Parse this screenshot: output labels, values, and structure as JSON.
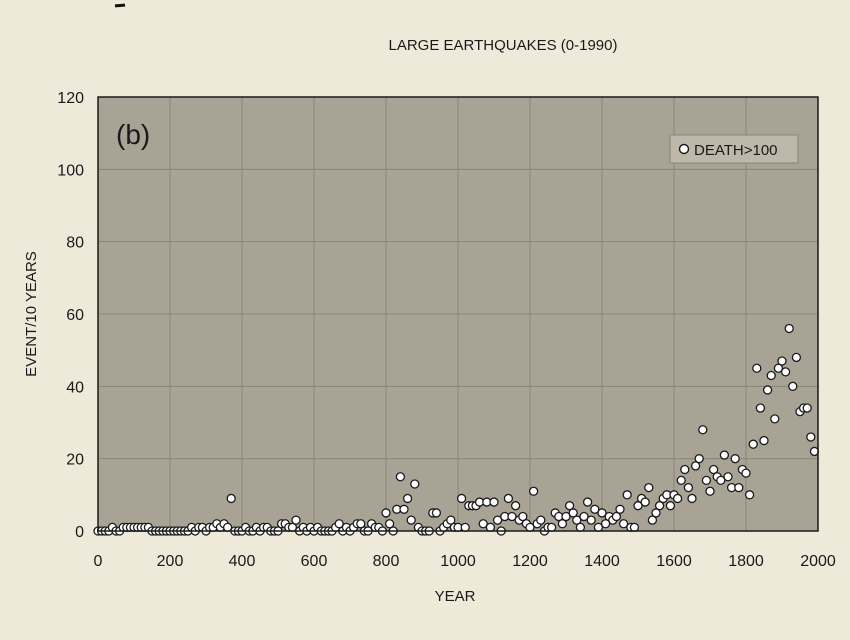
{
  "chart_data": {
    "type": "scatter",
    "title": "LARGE EARTHQUAKES (0-1990)",
    "panel_label": "(b)",
    "xlabel": "YEAR",
    "ylabel": "EVENT/10 YEARS",
    "xlim": [
      0,
      2000
    ],
    "ylim": [
      0,
      120
    ],
    "xticks": [
      0,
      200,
      400,
      600,
      800,
      1000,
      1200,
      1400,
      1600,
      1800,
      2000
    ],
    "yticks": [
      0,
      20,
      40,
      60,
      80,
      100,
      120
    ],
    "grid": true,
    "legend_position": "top-right",
    "colors": {
      "plot_background": "#a8a394",
      "grid": "#8a8577",
      "marker_fill": "#ffffff",
      "marker_stroke": "#1a1a1a"
    },
    "series": [
      {
        "name": "DEATH>100",
        "x": [
          0,
          10,
          20,
          30,
          40,
          50,
          60,
          70,
          80,
          90,
          100,
          110,
          120,
          130,
          140,
          150,
          160,
          170,
          180,
          190,
          200,
          210,
          220,
          230,
          240,
          250,
          260,
          270,
          280,
          290,
          300,
          310,
          320,
          330,
          340,
          350,
          360,
          370,
          380,
          390,
          400,
          410,
          420,
          430,
          440,
          450,
          460,
          470,
          480,
          490,
          500,
          510,
          520,
          530,
          540,
          550,
          560,
          570,
          580,
          590,
          600,
          610,
          620,
          630,
          640,
          650,
          660,
          670,
          680,
          690,
          700,
          710,
          720,
          730,
          740,
          750,
          760,
          770,
          780,
          790,
          800,
          810,
          820,
          830,
          840,
          850,
          860,
          870,
          880,
          890,
          900,
          910,
          920,
          930,
          940,
          950,
          960,
          970,
          980,
          990,
          1000,
          1010,
          1020,
          1030,
          1040,
          1050,
          1060,
          1070,
          1080,
          1090,
          1100,
          1110,
          1120,
          1130,
          1140,
          1150,
          1160,
          1170,
          1180,
          1190,
          1200,
          1210,
          1220,
          1230,
          1240,
          1250,
          1260,
          1270,
          1280,
          1290,
          1300,
          1310,
          1320,
          1330,
          1340,
          1350,
          1360,
          1370,
          1380,
          1390,
          1400,
          1410,
          1420,
          1430,
          1440,
          1450,
          1460,
          1470,
          1480,
          1490,
          1500,
          1510,
          1520,
          1530,
          1540,
          1550,
          1560,
          1570,
          1580,
          1590,
          1600,
          1610,
          1620,
          1630,
          1640,
          1650,
          1660,
          1670,
          1680,
          1690,
          1700,
          1710,
          1720,
          1730,
          1740,
          1750,
          1760,
          1770,
          1780,
          1790,
          1800,
          1810,
          1820,
          1830,
          1840,
          1850,
          1860,
          1870,
          1880,
          1890,
          1900,
          1910,
          1920,
          1930,
          1940,
          1950,
          1960,
          1970,
          1980,
          1990
        ],
        "y": [
          0,
          0,
          0,
          0,
          1,
          0,
          0,
          1,
          1,
          1,
          1,
          1,
          1,
          1,
          1,
          0,
          0,
          0,
          0,
          0,
          0,
          0,
          0,
          0,
          0,
          0,
          1,
          0,
          1,
          1,
          0,
          1,
          1,
          2,
          1,
          2,
          1,
          9,
          0,
          0,
          0,
          1,
          0,
          0,
          1,
          0,
          1,
          1,
          0,
          0,
          0,
          2,
          2,
          1,
          1,
          3,
          0,
          1,
          0,
          1,
          0,
          1,
          0,
          0,
          0,
          0,
          1,
          2,
          0,
          1,
          0,
          1,
          2,
          2,
          0,
          0,
          2,
          1,
          1,
          0,
          5,
          2,
          0,
          6,
          15,
          6,
          9,
          3,
          13,
          1,
          0,
          0,
          0,
          5,
          5,
          0,
          1,
          2,
          3,
          1,
          1,
          9,
          1,
          7,
          7,
          7,
          8,
          2,
          8,
          1,
          8,
          3,
          0,
          4,
          9,
          4,
          7,
          3,
          4,
          2,
          1,
          11,
          2,
          3,
          0,
          1,
          1,
          5,
          4,
          2,
          4,
          7,
          5,
          3,
          1,
          4,
          8,
          3,
          6,
          1,
          5,
          2,
          4,
          3,
          4,
          6,
          2,
          10,
          1,
          1,
          7,
          9,
          8,
          12,
          3,
          5,
          7,
          9,
          10,
          7,
          10,
          9,
          14,
          17,
          12,
          9,
          18,
          20,
          28,
          14,
          11,
          17,
          15,
          14,
          21,
          15,
          12,
          20,
          12,
          17,
          16,
          10,
          24,
          45,
          34,
          25,
          39,
          43,
          31,
          45,
          47,
          44,
          56,
          40,
          48,
          33,
          34,
          34,
          26,
          22
        ]
      }
    ]
  }
}
